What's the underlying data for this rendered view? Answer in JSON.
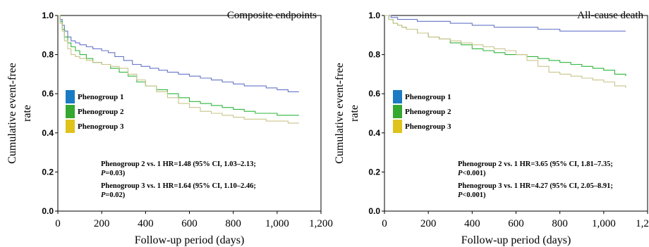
{
  "chart_data": [
    {
      "type": "line",
      "step": true,
      "title": "Composite endpoints",
      "xlabel": "Follow-up period (days)",
      "ylabel_lines": [
        "Cumulative event-free",
        "rate"
      ],
      "xlim": [
        0,
        1200
      ],
      "ylim": [
        0,
        1.0
      ],
      "xticks": [
        0,
        200,
        400,
        600,
        800,
        1000,
        1200
      ],
      "xtick_labels": [
        "0",
        "200",
        "400",
        "600",
        "800",
        "1,000",
        "1,200"
      ],
      "yticks": [
        0,
        0.2,
        0.4,
        0.6,
        0.8,
        1.0
      ],
      "ytick_labels": [
        "0.0",
        "0.2",
        "0.4",
        "0.6",
        "0.8",
        "1.0"
      ],
      "legend_position": "left",
      "grid": false,
      "series": [
        {
          "name": "Phenogroup 1",
          "color": "#6674c8",
          "legend_color": "#1a7bc4",
          "x": [
            0,
            10,
            20,
            30,
            45,
            60,
            80,
            100,
            130,
            160,
            200,
            230,
            260,
            300,
            340,
            380,
            420,
            460,
            500,
            550,
            600,
            650,
            700,
            750,
            800,
            850,
            900,
            950,
            1000,
            1050,
            1100
          ],
          "y": [
            1.0,
            0.98,
            0.95,
            0.92,
            0.89,
            0.87,
            0.86,
            0.85,
            0.84,
            0.83,
            0.82,
            0.81,
            0.79,
            0.77,
            0.75,
            0.74,
            0.73,
            0.72,
            0.71,
            0.7,
            0.69,
            0.68,
            0.67,
            0.66,
            0.65,
            0.64,
            0.64,
            0.63,
            0.62,
            0.61,
            0.61
          ]
        },
        {
          "name": "Phenogroup 2",
          "color": "#2fb53a",
          "legend_color": "#35a82f",
          "x": [
            0,
            10,
            20,
            30,
            45,
            60,
            80,
            100,
            130,
            160,
            200,
            240,
            280,
            320,
            360,
            400,
            450,
            500,
            550,
            600,
            650,
            700,
            750,
            800,
            850,
            900,
            950,
            1000,
            1050,
            1100
          ],
          "y": [
            1.0,
            0.97,
            0.93,
            0.89,
            0.86,
            0.84,
            0.82,
            0.8,
            0.78,
            0.76,
            0.75,
            0.73,
            0.71,
            0.69,
            0.66,
            0.64,
            0.62,
            0.6,
            0.58,
            0.56,
            0.55,
            0.54,
            0.53,
            0.52,
            0.51,
            0.5,
            0.5,
            0.49,
            0.49,
            0.49
          ]
        },
        {
          "name": "Phenogroup 3",
          "color": "#c9c48a",
          "legend_color": "#e0c21c",
          "x": [
            0,
            10,
            20,
            30,
            45,
            60,
            80,
            100,
            130,
            160,
            200,
            240,
            280,
            320,
            360,
            400,
            450,
            500,
            550,
            600,
            650,
            700,
            750,
            800,
            850,
            900,
            950,
            1000,
            1050,
            1100
          ],
          "y": [
            1.0,
            0.96,
            0.92,
            0.87,
            0.83,
            0.8,
            0.79,
            0.78,
            0.77,
            0.76,
            0.75,
            0.74,
            0.73,
            0.7,
            0.67,
            0.64,
            0.61,
            0.58,
            0.55,
            0.53,
            0.51,
            0.5,
            0.49,
            0.48,
            0.47,
            0.47,
            0.46,
            0.46,
            0.45,
            0.45
          ]
        }
      ],
      "annotations": [
        {
          "line1": "Phenogroup 2 vs. 1 HR=1.48 (95% CI, 1.03–2.13;",
          "p_label": "P",
          "p_value": "=0.03)"
        },
        {
          "line1": "Phenogroup 3 vs. 1 HR=1.64 (95% CI, 1.10–2.46;",
          "p_label": "P",
          "p_value": "=0.02)"
        }
      ]
    },
    {
      "type": "line",
      "step": true,
      "title": "All-cause death",
      "xlabel": "Follow-up period (days)",
      "ylabel_lines": [
        "Cumulative event-free",
        "rate"
      ],
      "xlim": [
        0,
        1200
      ],
      "ylim": [
        0,
        1.0
      ],
      "xticks": [
        0,
        200,
        400,
        600,
        800,
        1000,
        1200
      ],
      "xtick_labels": [
        "0",
        "200",
        "400",
        "600",
        "800",
        "1,000",
        "1,200"
      ],
      "yticks": [
        0,
        0.2,
        0.4,
        0.6,
        0.8,
        1.0
      ],
      "ytick_labels": [
        "0.0",
        "0.2",
        "0.4",
        "0.6",
        "0.8",
        "1.0"
      ],
      "legend_position": "left",
      "grid": false,
      "series": [
        {
          "name": "Phenogroup 1",
          "color": "#6674c8",
          "legend_color": "#1a7bc4",
          "x": [
            0,
            30,
            60,
            100,
            150,
            200,
            300,
            400,
            500,
            600,
            700,
            800,
            900,
            1000,
            1100
          ],
          "y": [
            1.0,
            0.99,
            0.98,
            0.98,
            0.97,
            0.97,
            0.96,
            0.95,
            0.94,
            0.94,
            0.93,
            0.92,
            0.92,
            0.92,
            0.92
          ]
        },
        {
          "name": "Phenogroup 2",
          "color": "#2fb53a",
          "legend_color": "#35a82f",
          "x": [
            0,
            20,
            40,
            60,
            80,
            100,
            150,
            200,
            250,
            300,
            350,
            400,
            450,
            500,
            550,
            600,
            650,
            700,
            750,
            800,
            850,
            900,
            950,
            1000,
            1050,
            1100
          ],
          "y": [
            1.0,
            0.98,
            0.96,
            0.95,
            0.94,
            0.93,
            0.91,
            0.89,
            0.88,
            0.86,
            0.85,
            0.83,
            0.82,
            0.81,
            0.8,
            0.8,
            0.79,
            0.78,
            0.77,
            0.76,
            0.75,
            0.74,
            0.73,
            0.72,
            0.7,
            0.69
          ]
        },
        {
          "name": "Phenogroup 3",
          "color": "#c9c48a",
          "legend_color": "#e0c21c",
          "x": [
            0,
            20,
            40,
            60,
            80,
            100,
            150,
            200,
            250,
            300,
            350,
            400,
            450,
            500,
            550,
            600,
            650,
            700,
            750,
            800,
            850,
            900,
            950,
            1000,
            1050,
            1100
          ],
          "y": [
            1.0,
            0.98,
            0.96,
            0.95,
            0.94,
            0.93,
            0.91,
            0.89,
            0.88,
            0.87,
            0.86,
            0.85,
            0.84,
            0.83,
            0.82,
            0.8,
            0.77,
            0.74,
            0.71,
            0.7,
            0.69,
            0.68,
            0.67,
            0.66,
            0.64,
            0.63
          ]
        }
      ],
      "annotations": [
        {
          "line1": "Phenogroup 2 vs. 1 HR=3.65 (95% CI, 1.81–7.35;",
          "p_label": "P",
          "p_value": "<0.001)"
        },
        {
          "line1": "Phenogroup 3 vs. 1 HR=4.27 (95% CI, 2.05–8.91;",
          "p_label": "P",
          "p_value": "<0.001)"
        }
      ]
    }
  ]
}
